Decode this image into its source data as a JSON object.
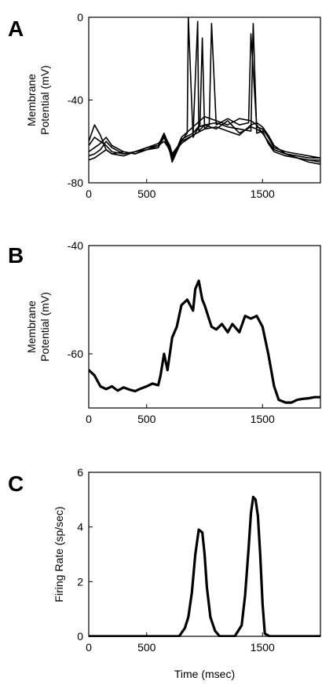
{
  "figure": {
    "background": "#ffffff",
    "ink": "#000000"
  },
  "chart_data": [
    {
      "panel_letter": "A",
      "type": "line",
      "ylabel_lines": [
        "Membrane",
        "Potential (mV)"
      ],
      "xlabel": "",
      "xlim": [
        0,
        2000
      ],
      "ylim": [
        -80,
        0
      ],
      "xticks": [
        0,
        500,
        1500
      ],
      "yticks": [
        0,
        -40,
        -80
      ],
      "line_width": 1.6,
      "series": [
        {
          "x": [
            0,
            50,
            100,
            150,
            200,
            300,
            400,
            500,
            600,
            650,
            700,
            720,
            800,
            850,
            860,
            900,
            950,
            1000,
            1100,
            1200,
            1300,
            1400,
            1450,
            1500,
            1550,
            1600,
            1700,
            1800,
            1900,
            2000
          ],
          "y": [
            -60,
            -52,
            -57,
            -64,
            -66,
            -65,
            -66,
            -64,
            -63,
            -57,
            -62,
            -66,
            -60,
            -56,
            0,
            -58,
            -53,
            -52,
            -54,
            -50,
            -56,
            -53,
            -54,
            -56,
            -60,
            -64,
            -66,
            -67,
            -68,
            -68
          ]
        },
        {
          "x": [
            0,
            50,
            100,
            150,
            200,
            300,
            400,
            500,
            600,
            650,
            700,
            720,
            800,
            900,
            940,
            950,
            1000,
            1100,
            1200,
            1300,
            1400,
            1420,
            1450,
            1500,
            1550,
            1600,
            1700,
            1800,
            1900,
            2000
          ],
          "y": [
            -62,
            -58,
            -60,
            -62,
            -65,
            -66,
            -65,
            -64,
            -63,
            -58,
            -63,
            -67,
            -61,
            -57,
            -2,
            -55,
            -52,
            -51,
            -53,
            -54,
            -55,
            -3,
            -56,
            -55,
            -61,
            -65,
            -67,
            -68,
            -69,
            -69
          ]
        },
        {
          "x": [
            0,
            50,
            100,
            150,
            200,
            300,
            400,
            500,
            600,
            650,
            700,
            720,
            800,
            900,
            960,
            980,
            1000,
            1040,
            1060,
            1100,
            1200,
            1300,
            1380,
            1400,
            1450,
            1500,
            1550,
            1600,
            1700,
            1800,
            1900,
            2000
          ],
          "y": [
            -65,
            -63,
            -61,
            -58,
            -62,
            -65,
            -66,
            -64,
            -62,
            -56,
            -63,
            -68,
            -59,
            -56,
            -52,
            -10,
            -54,
            -52,
            -3,
            -52,
            -49,
            -52,
            -51,
            -8,
            -53,
            -54,
            -58,
            -63,
            -65,
            -66,
            -67,
            -68
          ]
        },
        {
          "x": [
            0,
            50,
            100,
            150,
            200,
            300,
            400,
            500,
            600,
            650,
            700,
            720,
            800,
            900,
            1000,
            1100,
            1200,
            1300,
            1400,
            1450,
            1500,
            1550,
            1600,
            1700,
            1800,
            1900,
            2000
          ],
          "y": [
            -67,
            -66,
            -64,
            -60,
            -63,
            -66,
            -65,
            -63,
            -62,
            -60,
            -64,
            -69,
            -58,
            -53,
            -48,
            -50,
            -52,
            -49,
            -50,
            -52,
            -56,
            -60,
            -64,
            -66,
            -68,
            -69,
            -70
          ]
        },
        {
          "x": [
            0,
            50,
            100,
            150,
            200,
            300,
            400,
            500,
            600,
            650,
            700,
            720,
            800,
            900,
            1000,
            1100,
            1200,
            1300,
            1400,
            1450,
            1500,
            1550,
            1600,
            1700,
            1800,
            1900,
            2000
          ],
          "y": [
            -69,
            -68,
            -66,
            -64,
            -66,
            -67,
            -65,
            -63,
            -61,
            -58,
            -65,
            -70,
            -60,
            -57,
            -54,
            -53,
            -55,
            -57,
            -52,
            -51,
            -53,
            -57,
            -62,
            -66,
            -68,
            -70,
            -71
          ]
        }
      ]
    },
    {
      "panel_letter": "B",
      "type": "line",
      "ylabel_lines": [
        "Membrane",
        "Potential (mV)"
      ],
      "xlabel": "",
      "xlim": [
        0,
        2000
      ],
      "ylim": [
        -70,
        -40
      ],
      "xticks": [
        0,
        500,
        1500
      ],
      "yticks": [
        -40,
        -60
      ],
      "line_width": 3.2,
      "series": [
        {
          "x": [
            0,
            50,
            100,
            150,
            200,
            250,
            300,
            350,
            400,
            450,
            500,
            550,
            600,
            620,
            650,
            680,
            720,
            760,
            800,
            850,
            900,
            920,
            950,
            980,
            1000,
            1030,
            1060,
            1100,
            1150,
            1200,
            1240,
            1280,
            1300,
            1350,
            1400,
            1450,
            1500,
            1550,
            1600,
            1640,
            1700,
            1750,
            1800,
            1850,
            1900,
            1950,
            2000
          ],
          "y": [
            -63,
            -64,
            -66,
            -66.5,
            -66,
            -66.8,
            -66.2,
            -66.6,
            -66.9,
            -66.4,
            -66,
            -65.5,
            -65.8,
            -64,
            -60,
            -63,
            -57,
            -55,
            -51,
            -50,
            -52,
            -48,
            -46.5,
            -50,
            -51,
            -53,
            -55,
            -55.5,
            -54.5,
            -56,
            -54.5,
            -55.5,
            -56,
            -53,
            -53.5,
            -53,
            -55,
            -60,
            -66,
            -68.5,
            -69,
            -69,
            -68.5,
            -68.3,
            -68.2,
            -68,
            -68
          ]
        }
      ]
    },
    {
      "panel_letter": "C",
      "type": "line",
      "ylabel_lines": [
        "Firing Rate (sp/sec)"
      ],
      "xlabel": "Time (msec)",
      "xlim": [
        0,
        2000
      ],
      "ylim": [
        0,
        6
      ],
      "xticks": [
        0,
        500,
        1500
      ],
      "yticks": [
        0,
        2,
        4,
        6
      ],
      "line_width": 3.2,
      "series": [
        {
          "x": [
            0,
            700,
            780,
            830,
            860,
            890,
            920,
            950,
            980,
            1000,
            1020,
            1050,
            1090,
            1130,
            1180,
            1260,
            1320,
            1350,
            1380,
            1400,
            1420,
            1440,
            1460,
            1480,
            1500,
            1520,
            1560,
            2000
          ],
          "y": [
            0,
            0,
            0,
            0.3,
            0.7,
            1.6,
            3.0,
            3.9,
            3.8,
            3.0,
            1.8,
            0.7,
            0.2,
            0,
            0,
            0,
            0.4,
            1.5,
            3.2,
            4.5,
            5.1,
            5.0,
            4.4,
            3.0,
            1.2,
            0.1,
            0,
            0
          ]
        }
      ]
    }
  ]
}
